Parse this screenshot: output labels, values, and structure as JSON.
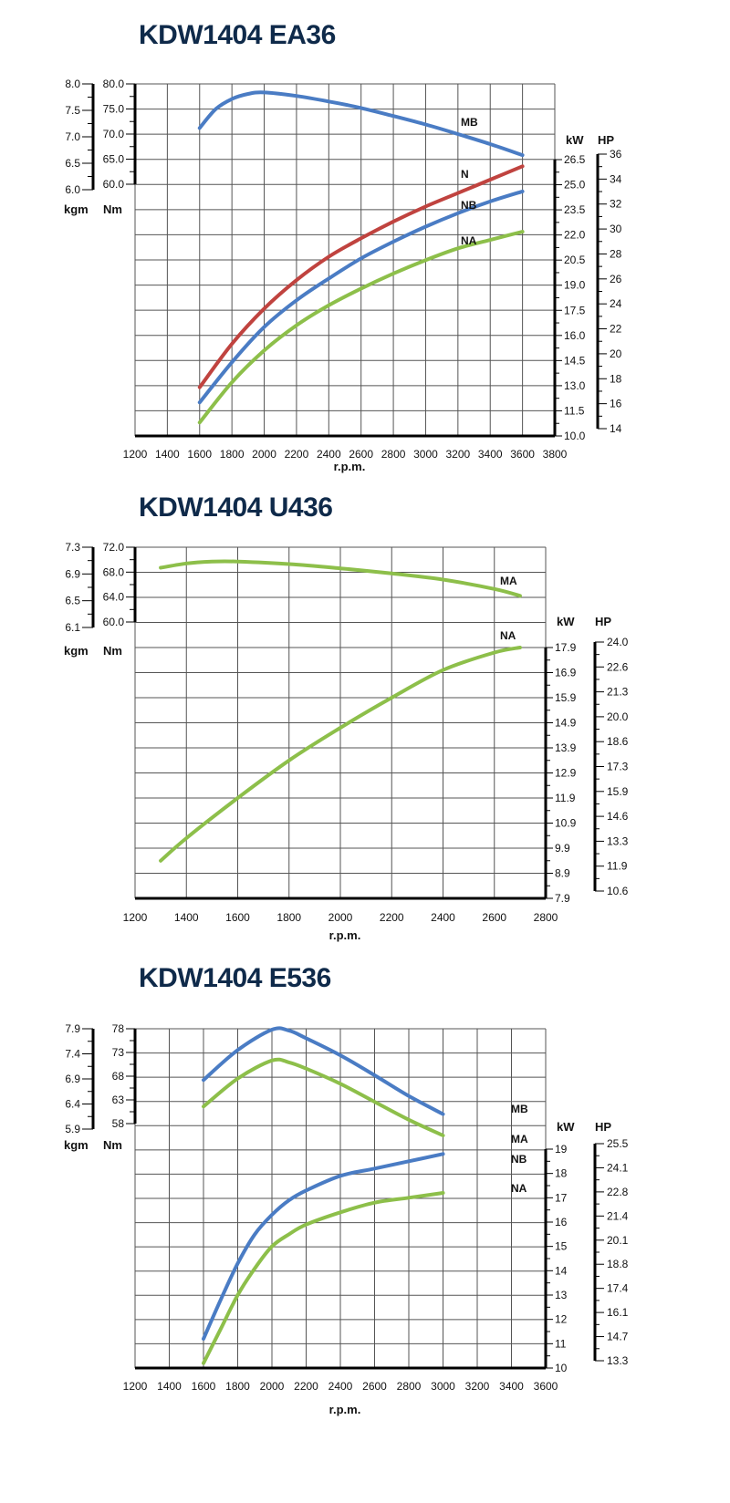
{
  "chart_data": [
    {
      "type": "line",
      "title": "KDW1404 EA36",
      "xlabel": "r.p.m.",
      "x_ticks": [
        1200,
        1400,
        1600,
        1800,
        2000,
        2200,
        2400,
        2600,
        2800,
        3000,
        3200,
        3400,
        3600,
        3800
      ],
      "xlim": [
        1200,
        3800
      ],
      "torque_axis": {
        "units": [
          "kgm",
          "Nm"
        ],
        "kgm_ticks": [
          "8.0",
          "7.5",
          "7.0",
          "6.5",
          "6.0"
        ],
        "nm_ticks": [
          "80.0",
          "75.0",
          "70.0",
          "65.0",
          "60.0"
        ],
        "nm_range": [
          60,
          80
        ]
      },
      "power_axis": {
        "units": [
          "kW",
          "HP"
        ],
        "kw_ticks": [
          "26.5",
          "25.0",
          "23.5",
          "22.0",
          "20.5",
          "19.0",
          "17.5",
          "16.0",
          "14.5",
          "13.0",
          "11.5",
          "10.0"
        ],
        "hp_ticks": [
          "36",
          "34",
          "32",
          "30",
          "28",
          "26",
          "24",
          "22",
          "20",
          "18",
          "16",
          "14"
        ],
        "kw_range": [
          10.0,
          26.5
        ]
      },
      "grid": true,
      "series": [
        {
          "name": "MB",
          "axis": "torque",
          "color": "#4a7cc4",
          "x": [
            1600,
            1700,
            1800,
            1900,
            2000,
            2200,
            2400,
            2600,
            2800,
            3000,
            3200,
            3400,
            3600
          ],
          "values": [
            71.2,
            75.0,
            77.0,
            78.0,
            78.3,
            77.6,
            76.5,
            75.2,
            73.6,
            71.9,
            70.0,
            68.0,
            65.8
          ]
        },
        {
          "name": "N",
          "axis": "power",
          "color": "#c0433f",
          "x": [
            1600,
            1800,
            2000,
            2200,
            2400,
            2600,
            2800,
            3000,
            3200,
            3400,
            3600
          ],
          "values": [
            12.9,
            15.5,
            17.6,
            19.3,
            20.7,
            21.8,
            22.8,
            23.7,
            24.5,
            25.3,
            26.1
          ]
        },
        {
          "name": "NB",
          "axis": "power",
          "color": "#4a7cc4",
          "x": [
            1600,
            1800,
            2000,
            2200,
            2400,
            2600,
            2800,
            3000,
            3200,
            3400,
            3600
          ],
          "values": [
            12.0,
            14.4,
            16.5,
            18.1,
            19.4,
            20.6,
            21.6,
            22.5,
            23.3,
            24.0,
            24.6
          ]
        },
        {
          "name": "NA",
          "axis": "power",
          "color": "#8dbf4a",
          "x": [
            1600,
            1800,
            2000,
            2200,
            2400,
            2600,
            2800,
            3000,
            3200,
            3400,
            3600
          ],
          "values": [
            10.8,
            13.2,
            15.1,
            16.6,
            17.8,
            18.8,
            19.7,
            20.5,
            21.2,
            21.7,
            22.2
          ]
        }
      ]
    },
    {
      "type": "line",
      "title": "KDW1404 U436",
      "xlabel": "r.p.m.",
      "x_ticks": [
        1200,
        1400,
        1600,
        1800,
        2000,
        2200,
        2400,
        2600,
        2800
      ],
      "xlim": [
        1200,
        2800
      ],
      "torque_axis": {
        "units": [
          "kgm",
          "Nm"
        ],
        "kgm_ticks": [
          "7.3",
          "6.9",
          "6.5",
          "6.1"
        ],
        "nm_ticks": [
          "72.0",
          "68.0",
          "64.0",
          "60.0"
        ],
        "nm_range": [
          60,
          72
        ]
      },
      "power_axis": {
        "units": [
          "kW",
          "HP"
        ],
        "kw_ticks": [
          "17.9",
          "16.9",
          "15.9",
          "14.9",
          "13.9",
          "12.9",
          "11.9",
          "10.9",
          "9.9",
          "8.9",
          "7.9"
        ],
        "hp_ticks": [
          "24.0",
          "22.6",
          "21.3",
          "20.0",
          "18.6",
          "17.3",
          "15.9",
          "14.6",
          "13.3",
          "11.9",
          "10.6"
        ],
        "kw_range": [
          7.9,
          17.9
        ]
      },
      "grid": true,
      "series": [
        {
          "name": "MA",
          "axis": "torque",
          "color": "#8dbf4a",
          "x": [
            1300,
            1400,
            1500,
            1600,
            1800,
            2000,
            2200,
            2400,
            2600,
            2700
          ],
          "values": [
            68.7,
            69.4,
            69.7,
            69.7,
            69.3,
            68.6,
            67.8,
            66.8,
            65.3,
            64.2
          ]
        },
        {
          "name": "NA",
          "axis": "power",
          "color": "#8dbf4a",
          "x": [
            1300,
            1400,
            1600,
            1800,
            2000,
            2200,
            2400,
            2600,
            2700
          ],
          "values": [
            9.4,
            10.3,
            11.9,
            13.4,
            14.7,
            15.9,
            17.0,
            17.7,
            17.9
          ]
        }
      ]
    },
    {
      "type": "line",
      "title": "KDW1404 E536",
      "xlabel": "r.p.m.",
      "x_ticks": [
        1200,
        1400,
        1600,
        1800,
        2000,
        2200,
        2400,
        2600,
        2800,
        3000,
        3200,
        3400,
        3600
      ],
      "xlim": [
        1200,
        3600
      ],
      "torque_axis": {
        "units": [
          "kgm",
          "Nm"
        ],
        "kgm_ticks": [
          "7.9",
          "7.4",
          "6.9",
          "6.4",
          "5.9"
        ],
        "nm_ticks": [
          "78",
          "73",
          "68",
          "63",
          "58"
        ],
        "nm_range": [
          58,
          78
        ]
      },
      "power_axis": {
        "units": [
          "kW",
          "HP"
        ],
        "kw_ticks": [
          "19",
          "18",
          "17",
          "16",
          "15",
          "14",
          "13",
          "12",
          "11",
          "10"
        ],
        "hp_ticks": [
          "25.5",
          "24.1",
          "22.8",
          "21.4",
          "20.1",
          "18.8",
          "17.4",
          "16.1",
          "14.7",
          "13.3"
        ],
        "kw_range": [
          10,
          19
        ]
      },
      "grid": true,
      "series": [
        {
          "name": "MB",
          "axis": "torque",
          "color": "#4a7cc4",
          "x": [
            1600,
            1800,
            2000,
            2100,
            2200,
            2400,
            2600,
            2800,
            3000
          ],
          "values": [
            67.2,
            73.5,
            77.8,
            77.6,
            76.0,
            72.4,
            68.2,
            63.8,
            60.0
          ]
        },
        {
          "name": "MA",
          "axis": "torque",
          "color": "#8dbf4a",
          "x": [
            1600,
            1800,
            2000,
            2100,
            2200,
            2400,
            2600,
            2800,
            3000
          ],
          "values": [
            61.6,
            67.5,
            71.3,
            70.9,
            69.6,
            66.4,
            62.6,
            58.8,
            55.5
          ]
        },
        {
          "name": "NB",
          "axis": "power",
          "color": "#4a7cc4",
          "x": [
            1600,
            1700,
            1800,
            1900,
            2000,
            2100,
            2200,
            2400,
            2600,
            2800,
            3000
          ],
          "values": [
            11.2,
            12.8,
            14.3,
            15.5,
            16.3,
            16.9,
            17.3,
            17.9,
            18.2,
            18.5,
            18.8
          ]
        },
        {
          "name": "NA",
          "axis": "power",
          "color": "#8dbf4a",
          "x": [
            1600,
            1700,
            1800,
            1900,
            2000,
            2100,
            2200,
            2400,
            2600,
            2800,
            3000
          ],
          "values": [
            10.2,
            11.6,
            13.0,
            14.1,
            15.0,
            15.5,
            15.9,
            16.4,
            16.8,
            17.0,
            17.2
          ]
        }
      ]
    }
  ],
  "charts": [
    {
      "title": "KDW1404 EA36",
      "xlabel": "r.p.m.",
      "kgm_label": "kgm",
      "nm_label": "Nm",
      "kw_label": "kW",
      "hp_label": "HP"
    },
    {
      "title": "KDW1404 U436",
      "xlabel": "r.p.m.",
      "kgm_label": "kgm",
      "nm_label": "Nm",
      "kw_label": "kW",
      "hp_label": "HP"
    },
    {
      "title": "KDW1404 E536",
      "xlabel": "r.p.m.",
      "kgm_label": "kgm",
      "nm_label": "Nm",
      "kw_label": "kW",
      "hp_label": "HP"
    }
  ]
}
